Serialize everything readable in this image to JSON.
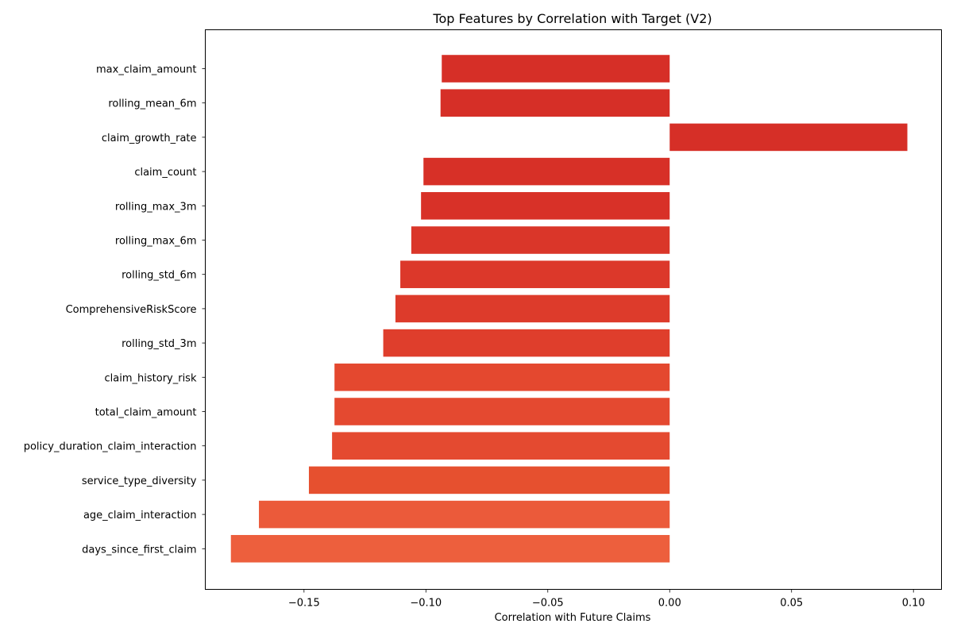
{
  "chart_data": {
    "type": "bar",
    "orientation": "horizontal",
    "title": "Top Features by Correlation with Target (V2)",
    "xlabel": "Correlation with Future Claims",
    "ylabel": "",
    "xlim": [
      -0.1905,
      0.1115
    ],
    "xticks": [
      -0.15,
      -0.1,
      -0.05,
      0.0,
      0.05,
      0.1
    ],
    "xtick_labels": [
      "−0.15",
      "−0.10",
      "−0.05",
      "0.00",
      "0.05",
      "0.10"
    ],
    "grid": false,
    "categories": [
      "max_claim_amount",
      "rolling_mean_6m",
      "claim_growth_rate",
      "claim_count",
      "rolling_max_3m",
      "rolling_max_6m",
      "rolling_std_6m",
      "ComprehensiveRiskScore",
      "rolling_std_3m",
      "claim_history_risk",
      "total_claim_amount",
      "policy_duration_claim_interaction",
      "service_type_diversity",
      "age_claim_interaction",
      "days_since_first_claim"
    ],
    "values": [
      -0.0935,
      -0.094,
      0.0975,
      -0.101,
      -0.102,
      -0.106,
      -0.1105,
      -0.1125,
      -0.1175,
      -0.1375,
      -0.1375,
      -0.1385,
      -0.148,
      -0.1685,
      -0.18
    ],
    "colors": [
      "#d62f27",
      "#d62f27",
      "#d62f27",
      "#d73027",
      "#d83128",
      "#da3629",
      "#dc382a",
      "#dd3b2b",
      "#df3e2c",
      "#e4482f",
      "#e44930",
      "#e44a30",
      "#e6502f",
      "#eb5a3a",
      "#ed5f3d"
    ]
  }
}
